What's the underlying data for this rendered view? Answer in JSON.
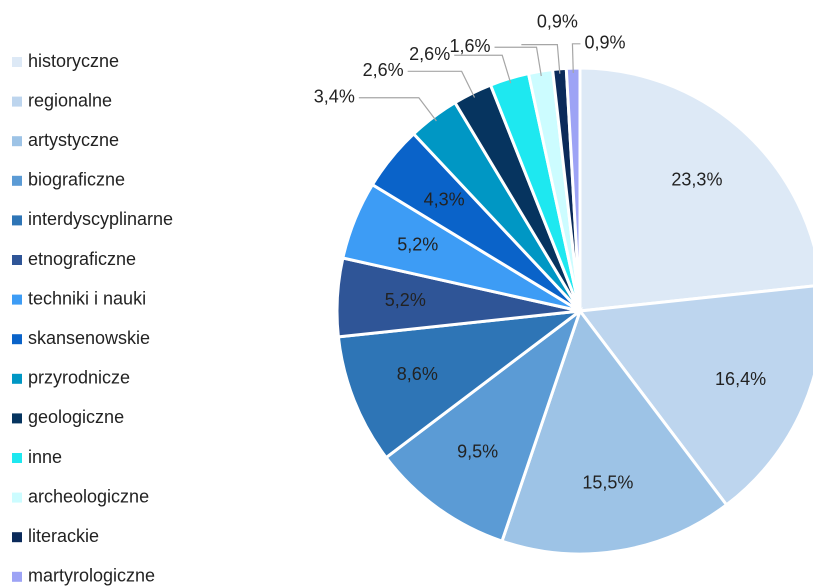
{
  "chart_data": {
    "type": "pie",
    "categories": [
      "historyczne",
      "regionalne",
      "artystyczne",
      "biograficzne",
      "interdyscyplinarne",
      "etnograficzne",
      "techniki i nauki",
      "skansenowskie",
      "przyrodnicze",
      "geologiczne",
      "inne",
      "archeologiczne",
      "literackie",
      "martyrologiczne"
    ],
    "values": [
      23.3,
      16.4,
      15.5,
      9.5,
      8.6,
      5.2,
      5.2,
      4.3,
      3.4,
      2.6,
      2.6,
      1.6,
      0.9,
      0.9
    ],
    "value_labels": [
      "23,3%",
      "16,4%",
      "15,5%",
      "9,5%",
      "8,6%",
      "5,2%",
      "5,2%",
      "4,3%",
      "3,4%",
      "2,6%",
      "2,6%",
      "1,6%",
      "0,9%",
      "0,9%"
    ],
    "colors": [
      "#dde9f6",
      "#bdd5ee",
      "#9dc3e6",
      "#5b9bd5",
      "#2e75b6",
      "#2f5597",
      "#3d9cf5",
      "#0a63c9",
      "#0097c4",
      "#06345f",
      "#1ee8f0",
      "#ccfcff",
      "#0b2a5a",
      "#9da3f5"
    ],
    "legend": "left"
  }
}
